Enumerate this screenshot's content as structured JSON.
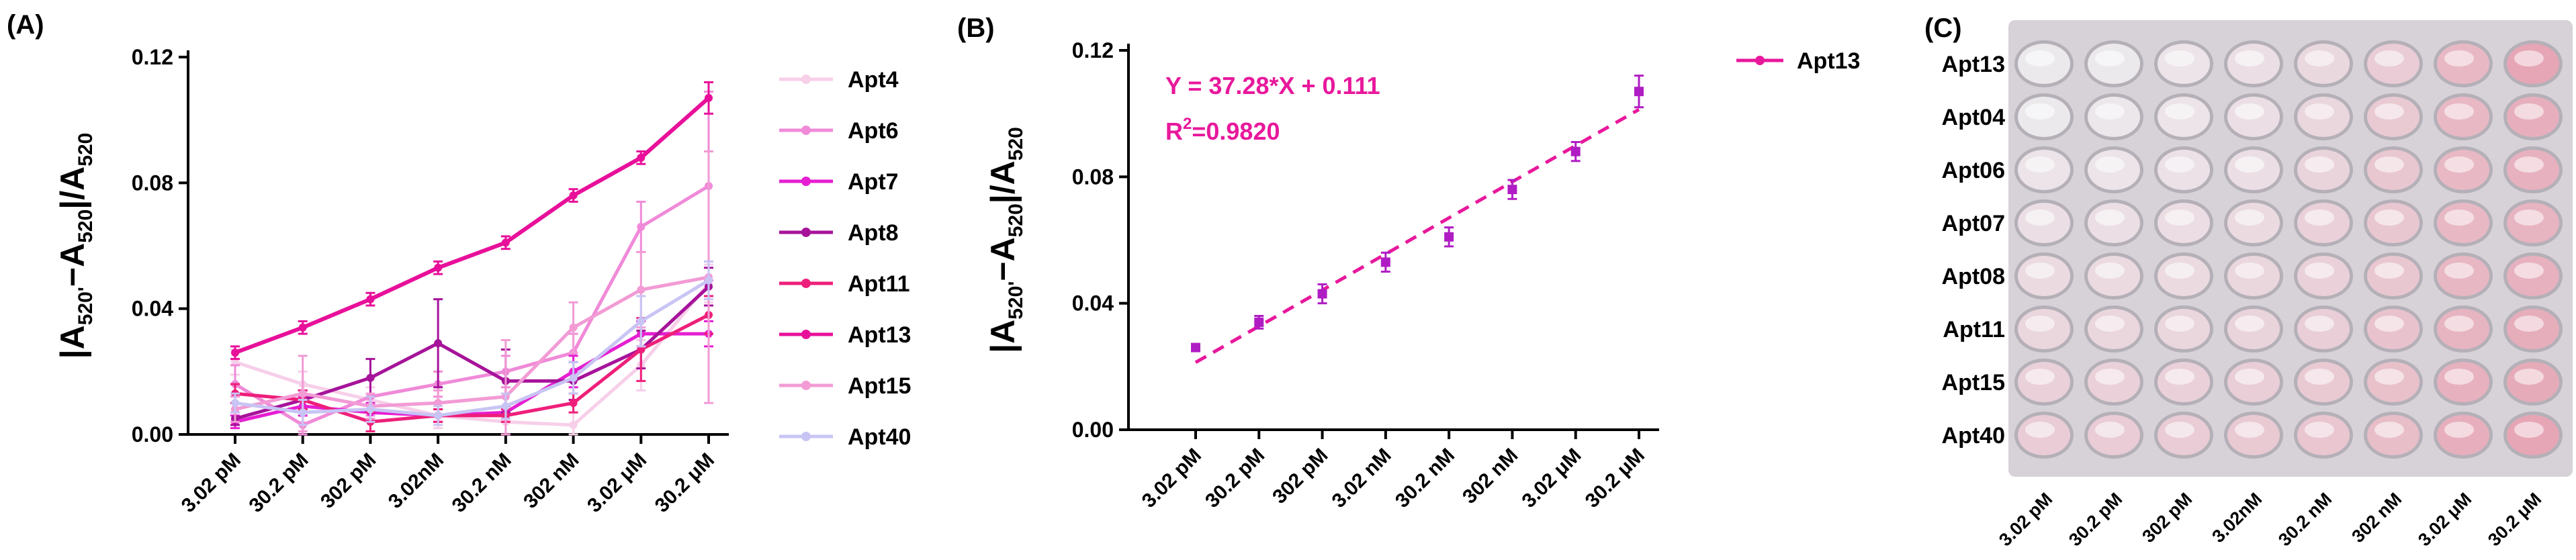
{
  "panels": {
    "a": "(A)",
    "b": "(B)",
    "c": "(C)"
  },
  "chart_data": [
    {
      "type": "line",
      "panel": "(A)",
      "ylabel": "|A520'−A520|/A520",
      "ylabel_parts": {
        "main": "|A",
        "sub1": "520'",
        "mid": "−A",
        "sub2": "520",
        "tail": "|/A",
        "sub3": "520"
      },
      "ylim": [
        0,
        0.12
      ],
      "yticks": [
        "0.00",
        "0.04",
        "0.08",
        "0.12"
      ],
      "categories": [
        "3.02 pM",
        "30.2 pM",
        "302 pM",
        "3.02nM",
        "30.2 nM",
        "302 nM",
        "3.02 μM",
        "30.2 μM"
      ],
      "legend_position": "right",
      "series": [
        {
          "name": "Apt4",
          "color": "#f7cfe9",
          "values": [
            0.023,
            0.016,
            0.011,
            0.006,
            0.004,
            0.003,
            0.022,
            0.048
          ],
          "errors": [
            0.004,
            0.004,
            0.004,
            0.004,
            0.004,
            0.004,
            0.008,
            0.006
          ]
        },
        {
          "name": "Apt6",
          "color": "#f08ad8",
          "values": [
            0.016,
            0.003,
            0.012,
            0.016,
            0.02,
            0.026,
            0.066,
            0.079
          ],
          "errors": [
            0.006,
            0.005,
            0.006,
            0.004,
            0.005,
            0.006,
            0.008,
            0.03
          ]
        },
        {
          "name": "Apt7",
          "color": "#e61ed2",
          "values": [
            0.004,
            0.009,
            0.007,
            0.006,
            0.007,
            0.02,
            0.032,
            0.032
          ],
          "errors": [
            0.002,
            0.003,
            0.003,
            0.002,
            0.002,
            0.005,
            0.004,
            0.004
          ]
        },
        {
          "name": "Apt8",
          "color": "#a6139a",
          "values": [
            0.005,
            0.011,
            0.018,
            0.029,
            0.017,
            0.017,
            0.027,
            0.047
          ],
          "errors": [
            0.002,
            0.003,
            0.006,
            0.014,
            0.01,
            0.006,
            0.006,
            0.006
          ]
        },
        {
          "name": "Apt11",
          "color": "#ee1f7a",
          "values": [
            0.013,
            0.011,
            0.004,
            0.006,
            0.006,
            0.01,
            0.027,
            0.038
          ],
          "errors": [
            0.003,
            0.003,
            0.003,
            0.002,
            0.002,
            0.003,
            0.01,
            0.006
          ]
        },
        {
          "name": "Apt13",
          "color": "#e8109a",
          "values": [
            0.026,
            0.034,
            0.043,
            0.053,
            0.061,
            0.076,
            0.088,
            0.107
          ],
          "errors": [
            0.002,
            0.002,
            0.002,
            0.002,
            0.002,
            0.002,
            0.002,
            0.005
          ]
        },
        {
          "name": "Apt15",
          "color": "#f29bd5",
          "values": [
            0.008,
            0.013,
            0.009,
            0.01,
            0.012,
            0.034,
            0.046,
            0.05
          ],
          "errors": [
            0.004,
            0.012,
            0.004,
            0.004,
            0.018,
            0.008,
            0.012,
            0.04
          ]
        },
        {
          "name": "Apt40",
          "color": "#c8c4f4",
          "values": [
            0.01,
            0.007,
            0.008,
            0.006,
            0.009,
            0.018,
            0.036,
            0.049
          ],
          "errors": [
            0.003,
            0.004,
            0.004,
            0.003,
            0.004,
            0.005,
            0.008,
            0.006
          ]
        }
      ]
    },
    {
      "type": "scatter",
      "panel": "(B)",
      "ylabel": "|A520'−A520|/A520",
      "ylabel_parts": {
        "main": "|A",
        "sub1": "520'",
        "mid": "−A",
        "sub2": "520",
        "tail": "|/A",
        "sub3": "520"
      },
      "ylim": [
        0,
        0.12
      ],
      "yticks": [
        "0.00",
        "0.04",
        "0.08",
        "0.12"
      ],
      "categories": [
        "3.02 pM",
        "30.2 pM",
        "302 pM",
        "3.02 nM",
        "30.2 nM",
        "302 nM",
        "3.02 μM",
        "30.2 μM"
      ],
      "legend_position": "top-right",
      "series": [
        {
          "name": "Apt13",
          "color": "#b01cc4",
          "values": [
            0.026,
            0.034,
            0.043,
            0.053,
            0.061,
            0.076,
            0.088,
            0.107
          ],
          "errors": [
            0.001,
            0.002,
            0.003,
            0.003,
            0.003,
            0.003,
            0.003,
            0.005
          ]
        }
      ],
      "fit": {
        "color": "#e8189c",
        "equation": "Y = 37.28*X + 0.111",
        "r2_prefix": "R",
        "r2_sup": "2",
        "r2_suffix": "=0.9820",
        "start": 0.0213,
        "end": 0.1013
      }
    }
  ],
  "plate": {
    "rows": [
      "Apt13",
      "Apt04",
      "Apt06",
      "Apt07",
      "Apt08",
      "Apt11",
      "Apt15",
      "Apt40"
    ],
    "columns": [
      "3.02 pM",
      "30.2 pM",
      "302 pM",
      "3.02nM",
      "30.2 nM",
      "302 nM",
      "3.02 μM",
      "30.2 μM"
    ],
    "intensity": [
      [
        0.0,
        0.0,
        0.05,
        0.1,
        0.18,
        0.3,
        0.5,
        0.7
      ],
      [
        0.0,
        0.02,
        0.05,
        0.1,
        0.2,
        0.32,
        0.5,
        0.6
      ],
      [
        0.05,
        0.05,
        0.08,
        0.1,
        0.22,
        0.35,
        0.5,
        0.58
      ],
      [
        0.1,
        0.1,
        0.12,
        0.15,
        0.25,
        0.35,
        0.5,
        0.55
      ],
      [
        0.15,
        0.15,
        0.15,
        0.2,
        0.25,
        0.35,
        0.52,
        0.58
      ],
      [
        0.2,
        0.2,
        0.2,
        0.22,
        0.28,
        0.4,
        0.55,
        0.62
      ],
      [
        0.25,
        0.25,
        0.25,
        0.28,
        0.32,
        0.42,
        0.58,
        0.65
      ],
      [
        0.3,
        0.3,
        0.3,
        0.32,
        0.36,
        0.45,
        0.6,
        0.7
      ]
    ],
    "tint_color": "#e3899d",
    "well_base_color": "#ece9ed",
    "background_color": "#d6d2d8"
  }
}
